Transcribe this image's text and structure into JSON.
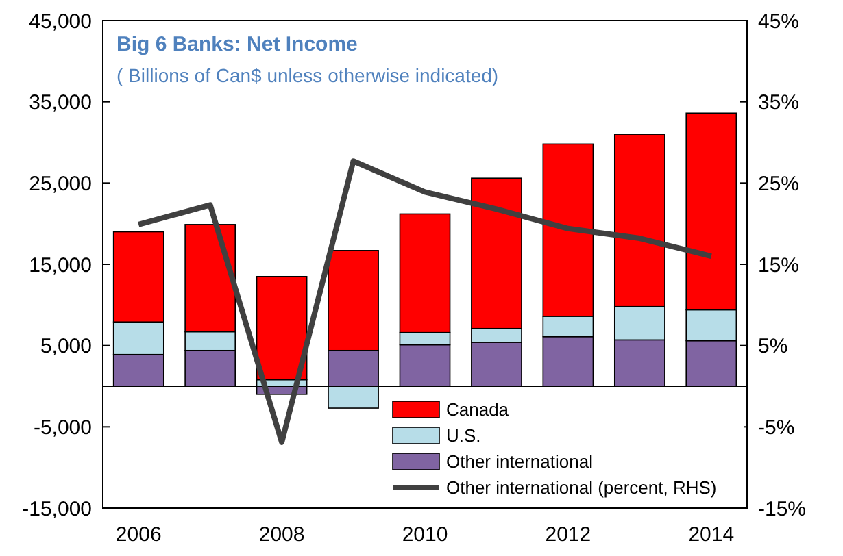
{
  "chart_data": {
    "type": "bar",
    "title": "Big 6 Banks: Net Income",
    "subtitle": "( Billions of Can$ unless otherwise indicated)",
    "categories": [
      "2006",
      null,
      "2008",
      null,
      "2010",
      null,
      "2012",
      null,
      "2014"
    ],
    "stacked": true,
    "series": [
      {
        "name": "Other international",
        "color": "#8064a2",
        "values": [
          3900,
          4400,
          -1000,
          4400,
          5100,
          5400,
          6100,
          5700,
          5600
        ]
      },
      {
        "name": "U.S.",
        "color": "#b7dde8",
        "values": [
          4000,
          2300,
          800,
          -2700,
          1500,
          1700,
          2500,
          4100,
          3800
        ]
      },
      {
        "name": "Canada",
        "color": "#ff0000",
        "values": [
          11100,
          13200,
          12700,
          12300,
          14600,
          18500,
          21200,
          21200,
          24200
        ]
      },
      {
        "name": "Other international (percent, RHS)",
        "type": "line",
        "axis": "y2",
        "color": "#404040",
        "values": [
          19.9,
          22.3,
          -6.9,
          27.7,
          23.9,
          21.8,
          19.4,
          18.2,
          16.0
        ]
      }
    ],
    "ylim": [
      -15000,
      45000
    ],
    "yticks": [
      {
        "value": -15000,
        "label": "-15,000"
      },
      {
        "value": -5000,
        "label": "-5,000"
      },
      {
        "value": 5000,
        "label": "5,000"
      },
      {
        "value": 15000,
        "label": "15,000"
      },
      {
        "value": 25000,
        "label": "25,000"
      },
      {
        "value": 35000,
        "label": "35,000"
      },
      {
        "value": 45000,
        "label": "45,000"
      }
    ],
    "y2lim": [
      -15,
      45
    ],
    "y2ticks": [
      {
        "value": -15,
        "label": "-15%"
      },
      {
        "value": -5,
        "label": "-5%"
      },
      {
        "value": 5,
        "label": "5%"
      },
      {
        "value": 15,
        "label": "15%"
      },
      {
        "value": 25,
        "label": "25%"
      },
      {
        "value": 35,
        "label": "35%"
      },
      {
        "value": 45,
        "label": "45%"
      }
    ],
    "legend": "bottom",
    "grid": false
  }
}
